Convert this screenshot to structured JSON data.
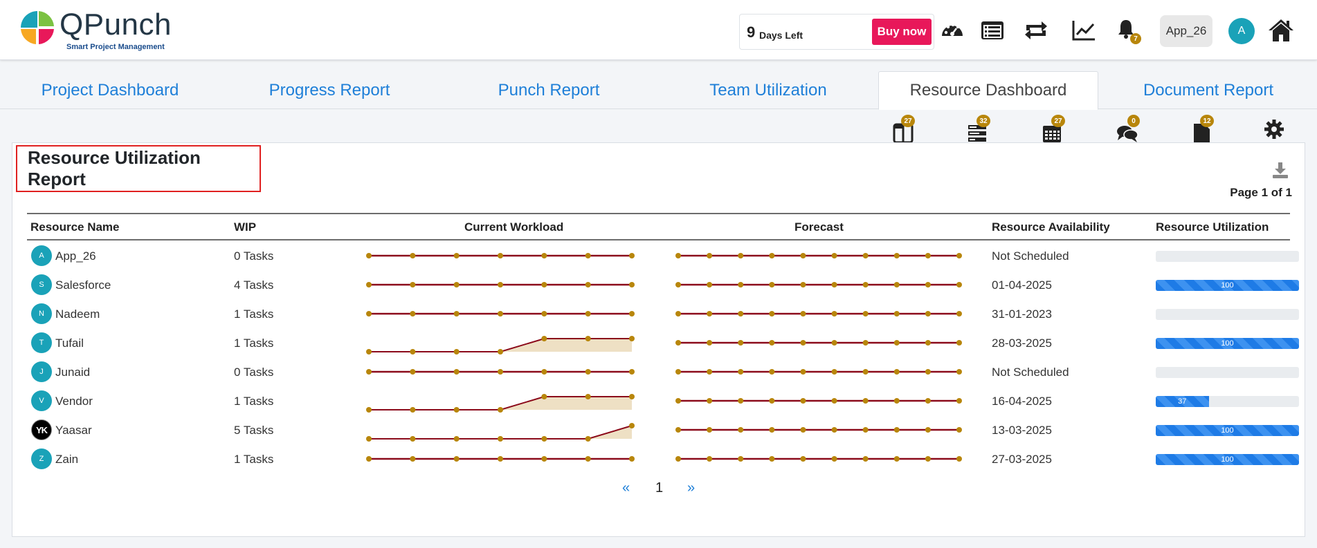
{
  "brand": {
    "name": "QPunch",
    "tagline": "Smart Project Management"
  },
  "trial": {
    "days": "9",
    "label": "Days Left",
    "buy_label": "Buy now"
  },
  "header_icons": [
    "dashboard-gauge-icon",
    "list-icon",
    "sync-icon",
    "chart-line-icon",
    "bell-icon",
    "home-icon"
  ],
  "notifications": {
    "count": "7"
  },
  "user": {
    "name": "App_26",
    "initial": "A"
  },
  "tabs": [
    {
      "label": "Project Dashboard"
    },
    {
      "label": "Progress Report"
    },
    {
      "label": "Punch Report"
    },
    {
      "label": "Team Utilization"
    },
    {
      "label": "Resource Dashboard",
      "active": true
    },
    {
      "label": "Document Report"
    }
  ],
  "subtoolbar": [
    {
      "icon": "columns-icon",
      "count": "27"
    },
    {
      "icon": "tasks-icon",
      "count": "32"
    },
    {
      "icon": "calendar-icon",
      "count": "27"
    },
    {
      "icon": "comments-icon",
      "count": "0"
    },
    {
      "icon": "file-icon",
      "count": "12"
    },
    {
      "icon": "settings-icon"
    }
  ],
  "report": {
    "title": "Resource Utilization Report",
    "page_info": "Page 1 of 1",
    "columns": [
      "Resource Name",
      "WIP",
      "Current Workload",
      "Forecast",
      "Resource Availability",
      "Resource Utilization"
    ],
    "rows": [
      {
        "initial": "A",
        "name": "App_26",
        "wip": "0 Tasks",
        "workload": [
          0,
          0,
          0,
          0,
          0,
          0,
          0
        ],
        "forecast": [
          0,
          0,
          0,
          0,
          0,
          0,
          0,
          0,
          0,
          0
        ],
        "availability": "Not Scheduled",
        "utilization": 0,
        "util_label": ""
      },
      {
        "initial": "S",
        "name": "Salesforce",
        "wip": "4 Tasks",
        "workload": [
          0,
          0,
          0,
          0,
          0,
          0,
          0
        ],
        "forecast": [
          0,
          0,
          0,
          0,
          0,
          0,
          0,
          0,
          0,
          0
        ],
        "availability": "01-04-2025",
        "utilization": 100,
        "util_label": "100"
      },
      {
        "initial": "N",
        "name": "Nadeem",
        "wip": "1 Tasks",
        "workload": [
          0,
          0,
          0,
          0,
          0,
          0,
          0
        ],
        "forecast": [
          0,
          0,
          0,
          0,
          0,
          0,
          0,
          0,
          0,
          0
        ],
        "availability": "31-01-2023",
        "utilization": 0,
        "util_label": ""
      },
      {
        "initial": "T",
        "name": "Tufail",
        "wip": "1 Tasks",
        "workload": [
          0,
          0,
          0,
          0,
          1,
          1,
          1
        ],
        "forecast": [
          0,
          0,
          0,
          0,
          0,
          0,
          0,
          0,
          0,
          0
        ],
        "availability": "28-03-2025",
        "utilization": 100,
        "util_label": "100"
      },
      {
        "initial": "J",
        "name": "Junaid",
        "wip": "0 Tasks",
        "workload": [
          0,
          0,
          0,
          0,
          0,
          0,
          0
        ],
        "forecast": [
          0,
          0,
          0,
          0,
          0,
          0,
          0,
          0,
          0,
          0
        ],
        "availability": "Not Scheduled",
        "utilization": 0,
        "util_label": ""
      },
      {
        "initial": "V",
        "name": "Vendor",
        "wip": "1 Tasks",
        "workload": [
          0,
          0,
          0,
          0,
          1,
          1,
          1
        ],
        "forecast": [
          0,
          0,
          0,
          0,
          0,
          0,
          0,
          0,
          0,
          0
        ],
        "availability": "16-04-2025",
        "utilization": 37,
        "util_label": "37"
      },
      {
        "initial": "YK",
        "name": "Yaasar",
        "wip": "5 Tasks",
        "workload": [
          0,
          0,
          0,
          0,
          0,
          0,
          1
        ],
        "forecast": [
          0,
          0,
          0,
          0,
          0,
          0,
          0,
          0,
          0,
          0
        ],
        "availability": "13-03-2025",
        "utilization": 100,
        "util_label": "100",
        "dark": true
      },
      {
        "initial": "Z",
        "name": "Zain",
        "wip": "1 Tasks",
        "workload": [
          0,
          0,
          0,
          0,
          0,
          0,
          0
        ],
        "forecast": [
          0,
          0,
          0,
          0,
          0,
          0,
          0,
          0,
          0,
          0
        ],
        "availability": "27-03-2025",
        "utilization": 100,
        "util_label": "100"
      }
    ]
  },
  "pagination": {
    "prev": "«",
    "current": "1",
    "next": "»"
  },
  "colors": {
    "accent": "#1e7fd8",
    "buy": "#e8185a",
    "badge": "#b8860b",
    "line": "#8b0a1a",
    "point": "#b8860b",
    "area": "#eee0c4"
  }
}
